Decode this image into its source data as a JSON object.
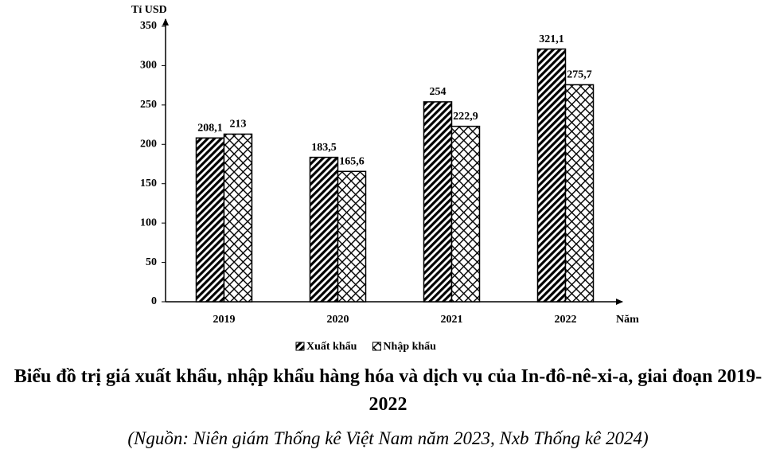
{
  "chart_data": {
    "type": "bar",
    "y_label": "Tỉ USD",
    "x_label": "Năm",
    "categories": [
      "2019",
      "2020",
      "2021",
      "2022"
    ],
    "series": [
      {
        "name": "Xuất khẩu",
        "color": "#000000",
        "pattern": "diagonal",
        "values": [
          208.1,
          183.5,
          254,
          321.1
        ],
        "value_labels": [
          "208,1",
          "183,5",
          "254",
          "321,1"
        ]
      },
      {
        "name": "Nhập khẩu",
        "color": "#000000",
        "pattern": "crosshatch",
        "values": [
          213,
          165.6,
          222.9,
          275.7
        ],
        "value_labels": [
          "213",
          "165,6",
          "222,9",
          "275,7"
        ]
      }
    ],
    "ylim": [
      0,
      350
    ],
    "yticks": [
      0,
      50,
      100,
      150,
      200,
      250,
      300,
      350
    ],
    "grid": false,
    "legend": "bottom",
    "title": "Biểu đồ trị giá xuất khẩu, nhập khẩu hàng hóa và dịch vụ của In-đô-nê-xi-a, giai đoạn 2019-2022",
    "source": "(Nguồn: Niên giám Thống kê Việt Nam năm 2023, Nxb Thống kê 2024)"
  }
}
